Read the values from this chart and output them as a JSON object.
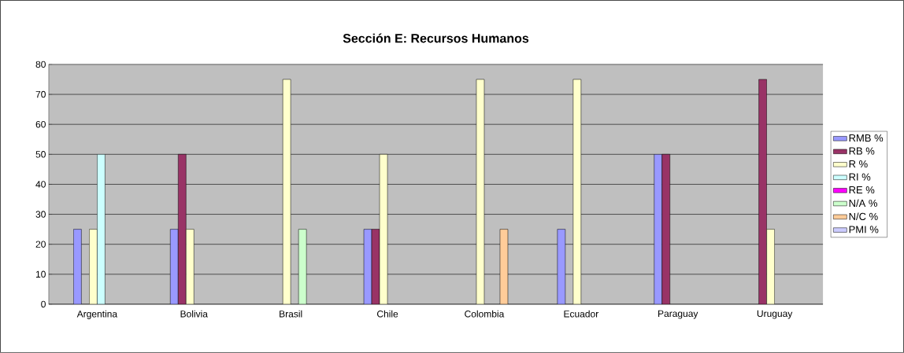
{
  "chart_data": {
    "type": "bar",
    "title": "Sección E: Recursos Humanos",
    "categories": [
      "Argentina",
      "Bolivia",
      "Brasil",
      "Chile",
      "Colombia",
      "Ecuador",
      "Paraguay",
      "Uruguay"
    ],
    "series": [
      {
        "name": "RMB %",
        "color": "#9999ff",
        "values": [
          25,
          25,
          null,
          25,
          null,
          25,
          50,
          null
        ]
      },
      {
        "name": "RB %",
        "color": "#993366",
        "values": [
          null,
          50,
          null,
          25,
          null,
          null,
          50,
          75
        ]
      },
      {
        "name": "R %",
        "color": "#ffffcc",
        "values": [
          25,
          25,
          75,
          50,
          75,
          75,
          null,
          25
        ]
      },
      {
        "name": "RI %",
        "color": "#ccffff",
        "values": [
          50,
          null,
          null,
          null,
          null,
          null,
          null,
          null
        ]
      },
      {
        "name": "RE %",
        "color": "#ff00ff",
        "values": [
          null,
          null,
          null,
          null,
          null,
          null,
          null,
          null
        ]
      },
      {
        "name": "N/A %",
        "color": "#ccffcc",
        "values": [
          null,
          null,
          25,
          null,
          null,
          null,
          null,
          null
        ]
      },
      {
        "name": "N/C %",
        "color": "#ffcc99",
        "values": [
          null,
          null,
          null,
          null,
          25,
          null,
          null,
          null
        ]
      },
      {
        "name": "PMI %",
        "color": "#ccccff",
        "values": [
          null,
          null,
          null,
          null,
          null,
          null,
          null,
          null
        ]
      }
    ],
    "ylim": [
      0,
      80
    ],
    "yticks": [
      0,
      10,
      20,
      30,
      40,
      50,
      60,
      70,
      80
    ],
    "grid": "y",
    "legend": "right"
  }
}
